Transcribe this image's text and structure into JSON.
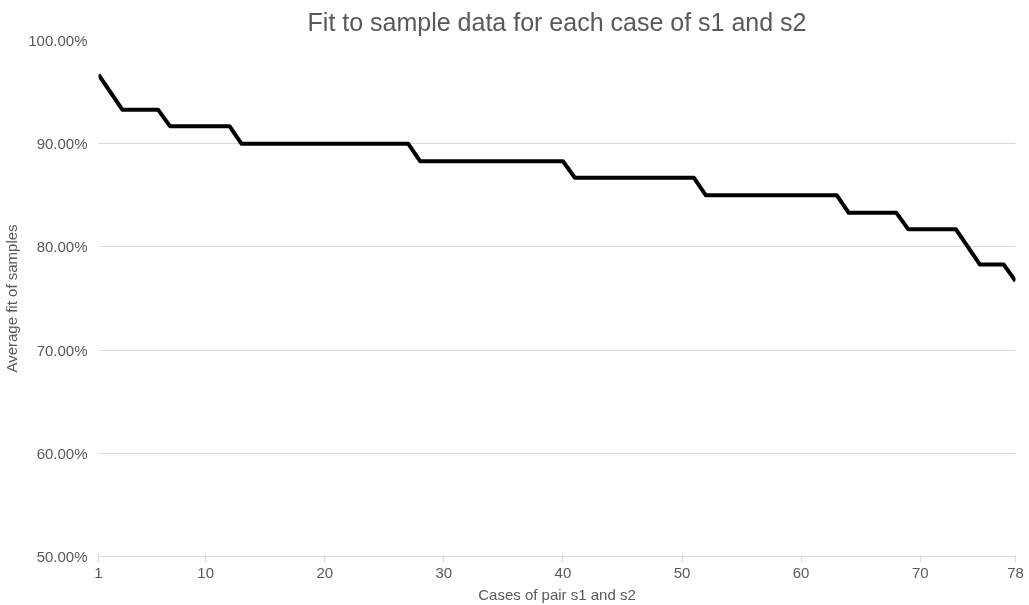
{
  "chart_data": {
    "type": "line",
    "title": "Fit to sample data for each case of s1 and s2",
    "xlabel": "Cases of pair s1 and s2",
    "ylabel": "Average fit of samples",
    "x": [
      1,
      2,
      3,
      4,
      5,
      6,
      7,
      8,
      9,
      10,
      11,
      12,
      13,
      14,
      15,
      16,
      17,
      18,
      19,
      20,
      21,
      22,
      23,
      24,
      25,
      26,
      27,
      28,
      29,
      30,
      31,
      32,
      33,
      34,
      35,
      36,
      37,
      38,
      39,
      40,
      41,
      42,
      43,
      44,
      45,
      46,
      47,
      48,
      49,
      50,
      51,
      52,
      53,
      54,
      55,
      56,
      57,
      58,
      59,
      60,
      61,
      62,
      63,
      64,
      65,
      66,
      67,
      68,
      69,
      70,
      71,
      72,
      73,
      74,
      75,
      76,
      77,
      78
    ],
    "series": [
      {
        "color": "#000000",
        "values": [
          96.7,
          95,
          93.3,
          93.3,
          93.3,
          93.3,
          91.7,
          91.7,
          91.7,
          91.7,
          91.7,
          91.7,
          90,
          90,
          90,
          90,
          90,
          90,
          90,
          90,
          90,
          90,
          90,
          90,
          90,
          90,
          90,
          88.3,
          88.3,
          88.3,
          88.3,
          88.3,
          88.3,
          88.3,
          88.3,
          88.3,
          88.3,
          88.3,
          88.3,
          88.3,
          86.7,
          86.7,
          86.7,
          86.7,
          86.7,
          86.7,
          86.7,
          86.7,
          86.7,
          86.7,
          86.7,
          85,
          85,
          85,
          85,
          85,
          85,
          85,
          85,
          85,
          85,
          85,
          85,
          83.3,
          83.3,
          83.3,
          83.3,
          83.3,
          81.7,
          81.7,
          81.7,
          81.7,
          81.7,
          80,
          78.3,
          78.3,
          78.3,
          76.7
        ]
      }
    ],
    "xlim": [
      1,
      78
    ],
    "xticks": [
      1,
      10,
      20,
      30,
      40,
      50,
      60,
      70,
      78
    ],
    "ylim": [
      50,
      100
    ],
    "yticks": [
      {
        "value": 50,
        "label": "50.00%"
      },
      {
        "value": 60,
        "label": "60.00%"
      },
      {
        "value": 70,
        "label": "70.00%"
      },
      {
        "value": 80,
        "label": "80.00%"
      },
      {
        "value": 90,
        "label": "90.00%"
      },
      {
        "value": 100,
        "label": "100.00%"
      }
    ],
    "grid": "y",
    "marker": "none",
    "line_style": "solid"
  }
}
